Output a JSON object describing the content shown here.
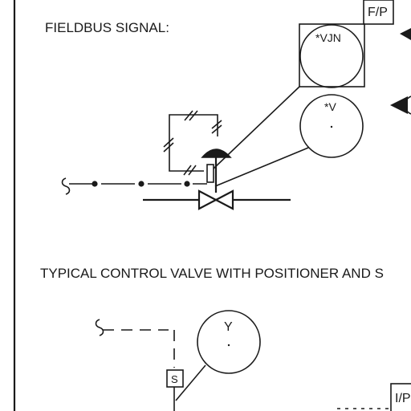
{
  "diagram": {
    "heading_top": "FIELDBUS SIGNAL:",
    "heading_mid": "TYPICAL CONTROL VALVE WITH POSITIONER AND S",
    "box_fp": "F/P",
    "box_ip": "I/P",
    "bubble_vjn": "*VJN",
    "bubble_v": "*V",
    "bubble_y": "Y",
    "solenoid": "S"
  }
}
